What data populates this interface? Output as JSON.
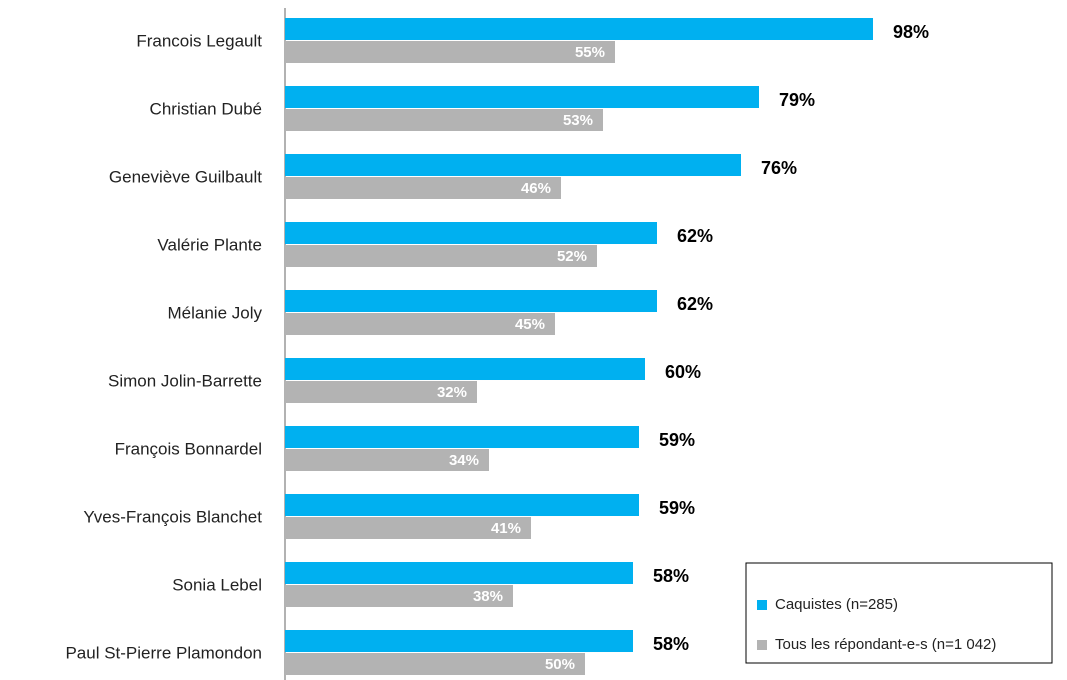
{
  "chart_data": {
    "type": "bar",
    "orientation": "horizontal",
    "categories": [
      "Francois Legault",
      "Christian Dubé",
      "Geneviève Guilbault",
      "Valérie Plante",
      "Mélanie Joly",
      "Simon Jolin-Barrette",
      "François Bonnardel",
      "Yves-François Blanchet",
      "Sonia Lebel",
      "Paul St-Pierre Plamondon"
    ],
    "series": [
      {
        "name": "Caquistes (n=285)",
        "color": "#00b0f0",
        "values": [
          98,
          79,
          76,
          62,
          62,
          60,
          59,
          59,
          58,
          58
        ],
        "value_labels": [
          "98%",
          "79%",
          "76%",
          "62%",
          "62%",
          "60%",
          "59%",
          "59%",
          "58%",
          "58%"
        ]
      },
      {
        "name": "Tous les répondant-e-s (n=1 042)",
        "color": "#b3b3b3",
        "values": [
          55,
          53,
          46,
          52,
          45,
          32,
          34,
          41,
          38,
          50
        ],
        "value_labels": [
          "55%",
          "53%",
          "46%",
          "52%",
          "45%",
          "32%",
          "34%",
          "41%",
          "38%",
          "50%"
        ]
      }
    ],
    "legend": "lower right"
  }
}
